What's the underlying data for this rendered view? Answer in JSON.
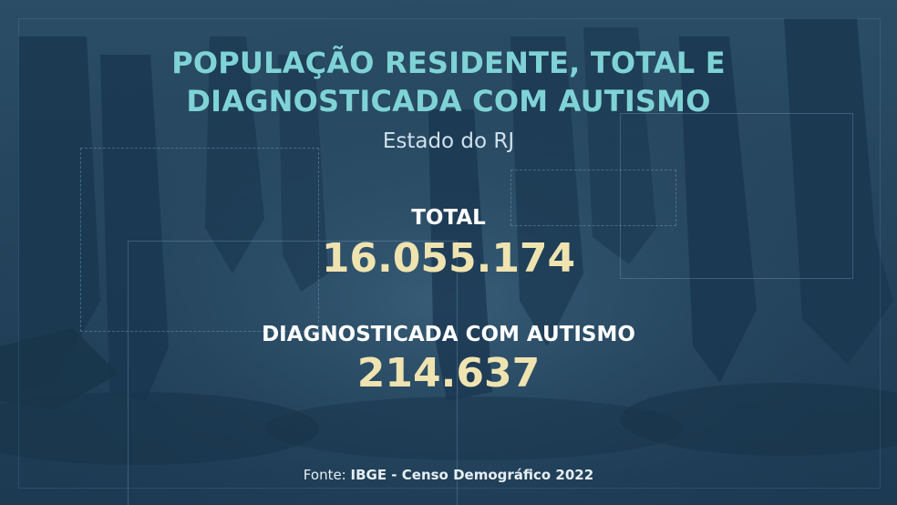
{
  "title": "POPULAÇÃO RESIDENTE, TOTAL E DIAGNOSTICADA COM AUTISMO",
  "subtitle": "Estado do RJ",
  "stats": {
    "total_label": "TOTAL",
    "total_value": "16.055.174",
    "autism_label": "DIAGNOSTICADA COM AUTISMO",
    "autism_value": "214.637"
  },
  "source": {
    "prefix": "Fonte: ",
    "name": "IBGE - Censo Demográfico 2022"
  },
  "colors": {
    "title": "#7fd3d6",
    "values": "#efe3b0",
    "background": "#24445c"
  }
}
